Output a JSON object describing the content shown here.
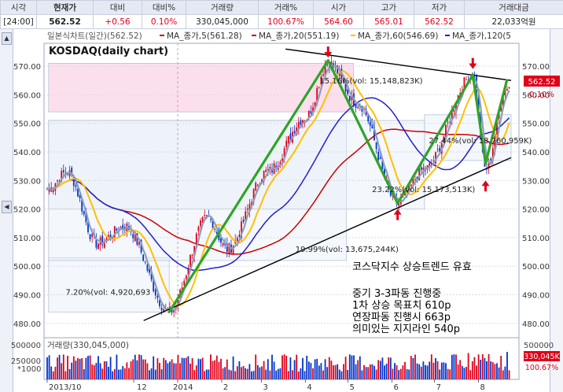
{
  "header": {
    "labels": [
      "시각",
      "현재가",
      "대비",
      "대비%",
      "거래량",
      "거래%",
      "시가",
      "고가",
      "저가",
      "거래대금"
    ],
    "values": [
      "[24:00]",
      "562.52",
      "+0.56",
      "0.10%",
      "330,045,000",
      "100.67%",
      "564.60",
      "565.01",
      "562.52",
      "22,033억원"
    ]
  },
  "legend": {
    "main": "일본식차트(일간)(562.52)",
    "ma5": "MA_종가,5(561.28)",
    "ma20": "MA_종가,20(551.19)",
    "ma60": "MA_종가,60(546.69)",
    "ma120": "MA_종가,120(5",
    "title": "KOSDAQ(daily chart)"
  },
  "colors": {
    "up": "#e0001a",
    "down": "#0033cc",
    "ma5": "#8d9db8",
    "ma20": "#ffc000",
    "ma60": "#1f1fd0",
    "ma120": "#cc0000",
    "wave": "#2ea428"
  },
  "chart_data": {
    "type": "candlestick",
    "x": [
      "2013/10",
      "12",
      "2014",
      "2",
      "3",
      "4",
      "5",
      "6",
      "7",
      "8"
    ],
    "ylim": [
      475,
      578
    ],
    "yticks": [
      480,
      490,
      500,
      510,
      520,
      530,
      540,
      550,
      560,
      570
    ],
    "current": {
      "price": "562.52",
      "change_pct": "0.10%"
    },
    "anchors": [
      {
        "date": "2013-10-01",
        "value": 527
      },
      {
        "date": "2013-10-15",
        "value": 533
      },
      {
        "date": "2013-11-05",
        "value": 508
      },
      {
        "date": "2013-11-25",
        "value": 514
      },
      {
        "date": "2013-12-26",
        "value": 484
      },
      {
        "date": "2014-01-22",
        "value": 517
      },
      {
        "date": "2014-02-05",
        "value": 506
      },
      {
        "date": "2014-03-05",
        "value": 533
      },
      {
        "date": "2014-04-01",
        "value": 552
      },
      {
        "date": "2014-04-17",
        "value": 571
      },
      {
        "date": "2014-05-08",
        "value": 557
      },
      {
        "date": "2014-06-05",
        "value": 522
      },
      {
        "date": "2014-06-24",
        "value": 534
      },
      {
        "date": "2014-07-28",
        "value": 567
      },
      {
        "date": "2014-08-06",
        "value": 534
      },
      {
        "date": "2014-08-21",
        "value": 563
      }
    ],
    "waves": [
      {
        "x1": "2013-12-26",
        "y1": 484,
        "x2": "2014-04-17",
        "y2": 572
      },
      {
        "x1": "2014-04-17",
        "y1": 572,
        "x2": "2014-06-05",
        "y2": 522
      },
      {
        "x1": "2014-06-05",
        "y1": 522,
        "x2": "2014-07-28",
        "y2": 567
      },
      {
        "x1": "2014-07-28",
        "y1": 567,
        "x2": "2014-08-06",
        "y2": 536
      },
      {
        "x1": "2014-08-06",
        "y1": 536,
        "x2": "2014-08-21",
        "y2": 565
      }
    ],
    "trendlines": [
      {
        "x1": "2013-12-08",
        "y1": 481,
        "x2": "2014-08-24",
        "y2": 538
      },
      {
        "x1": "2014-03-18",
        "y1": 576,
        "x2": "2014-08-24",
        "y2": 565
      }
    ],
    "fib_boxes": [
      {
        "label": "7.20%(vol: 4,920,693",
        "x1": "2013-10-02",
        "x2": "2013-12-26",
        "y1": 484,
        "y2": 503,
        "lx": "2013-10-14",
        "ly": 490
      },
      {
        "label": "19.99%(vol: 13,675,244K)",
        "x1": "2013-10-02",
        "x2": "2014-04-30",
        "y1": 502,
        "y2": 551,
        "lx": "2014-03-25",
        "ly": 505
      },
      {
        "label": "23.22%(vol: 15,173,513K)",
        "x1": "2013-10-02",
        "x2": "2014-06-24",
        "y1": 520,
        "y2": 551,
        "lx": "2014-05-18",
        "ly": 526
      },
      {
        "label": "27.44%(vol: 18,760,959K)",
        "x1": "2014-06-24",
        "x2": "2014-08-24",
        "y1": 537,
        "y2": 553,
        "lx": "2014-06-27",
        "ly": 543
      },
      {
        "label": "15.16%(vol: 15,148,823K)",
        "x1": "2013-10-02",
        "x2": "2014-05-05",
        "y1": 554,
        "y2": 571,
        "lx": "2014-04-11",
        "ly": 564
      }
    ],
    "arrows": [
      {
        "date": "2014-04-17",
        "value": 573,
        "dir": "down"
      },
      {
        "date": "2014-07-28",
        "value": 569,
        "dir": "down"
      },
      {
        "date": "2014-06-05",
        "value": 520,
        "dir": "up"
      },
      {
        "date": "2014-08-06",
        "value": 530,
        "dir": "up"
      }
    ]
  },
  "annotations": {
    "line1": "코스닥지수 상승트렌드 유효",
    "line2": "중기 3-3파동 진행중",
    "line3": "1차 상승 목표치 610p",
    "line4": "연장파동 진행시 663p",
    "line5": "의미있는 지지라인 540p"
  },
  "volume": {
    "label": "거래량(330,045,000)",
    "unit": "*1000",
    "yticks": [
      "500000",
      "250000"
    ],
    "last": "330,045K",
    "last_pct": "100.67%"
  }
}
